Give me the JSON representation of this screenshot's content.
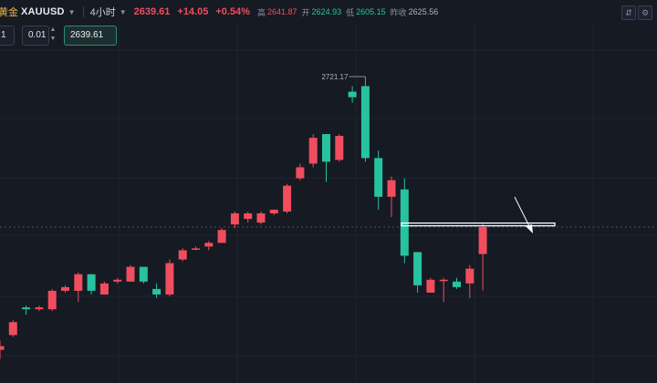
{
  "header": {
    "gold_label": "黄金",
    "symbol": "XAUUSD",
    "interval": "4小时",
    "price": "2639.61",
    "change": "+14.05",
    "change_pct": "+0.54%",
    "high_label": "高",
    "high_value": "2641.87",
    "open_label": "开",
    "open_value": "2624.93",
    "low_label": "低",
    "low_value": "2605.15",
    "prev_close_label": "昨收",
    "prev_close_value": "2625.56",
    "icons": [
      "caret-down-icon",
      "compare-icon",
      "settings-icon"
    ]
  },
  "order_bar": {
    "left_value": "1",
    "step_value": "0.01",
    "price_value": "2639.61"
  },
  "chart_data": {
    "type": "candlestick",
    "symbol": "XAUUSD",
    "interval": "4小时",
    "up_color": "#f04d5e",
    "down_color": "#27c3a0",
    "annotation": "2721.17",
    "ylim": [
      2555,
      2738
    ],
    "candles": [
      {
        "o": 2573,
        "h": 2578,
        "l": 2568,
        "c": 2575
      },
      {
        "o": 2581,
        "h": 2589,
        "l": 2580,
        "c": 2588
      },
      {
        "o": 2596,
        "h": 2597,
        "l": 2592,
        "c": 2595
      },
      {
        "o": 2595,
        "h": 2597,
        "l": 2594,
        "c": 2596
      },
      {
        "o": 2595,
        "h": 2606,
        "l": 2594,
        "c": 2605
      },
      {
        "o": 2605,
        "h": 2608,
        "l": 2604,
        "c": 2607
      },
      {
        "o": 2605,
        "h": 2615,
        "l": 2599,
        "c": 2614
      },
      {
        "o": 2614,
        "h": 2614,
        "l": 2603,
        "c": 2605
      },
      {
        "o": 2603,
        "h": 2610,
        "l": 2603,
        "c": 2609
      },
      {
        "o": 2610,
        "h": 2612,
        "l": 2609,
        "c": 2611
      },
      {
        "o": 2610,
        "h": 2619,
        "l": 2610,
        "c": 2618
      },
      {
        "o": 2618,
        "h": 2618,
        "l": 2609,
        "c": 2610
      },
      {
        "o": 2606,
        "h": 2609,
        "l": 2601,
        "c": 2603
      },
      {
        "o": 2603,
        "h": 2622,
        "l": 2602,
        "c": 2620
      },
      {
        "o": 2622,
        "h": 2628,
        "l": 2621,
        "c": 2627
      },
      {
        "o": 2628,
        "h": 2629,
        "l": 2627,
        "c": 2628
      },
      {
        "o": 2629,
        "h": 2632,
        "l": 2627,
        "c": 2631
      },
      {
        "o": 2631,
        "h": 2639,
        "l": 2631,
        "c": 2638
      },
      {
        "o": 2641,
        "h": 2648,
        "l": 2639,
        "c": 2647
      },
      {
        "o": 2644,
        "h": 2648,
        "l": 2642,
        "c": 2647
      },
      {
        "o": 2642,
        "h": 2648,
        "l": 2641,
        "c": 2647
      },
      {
        "o": 2647,
        "h": 2649,
        "l": 2646,
        "c": 2649
      },
      {
        "o": 2648,
        "h": 2663,
        "l": 2647,
        "c": 2662
      },
      {
        "o": 2666,
        "h": 2674,
        "l": 2665,
        "c": 2672
      },
      {
        "o": 2674,
        "h": 2690,
        "l": 2672,
        "c": 2688
      },
      {
        "o": 2690,
        "h": 2690,
        "l": 2664,
        "c": 2675
      },
      {
        "o": 2676,
        "h": 2690,
        "l": 2675,
        "c": 2689
      },
      {
        "o": 2713,
        "h": 2716,
        "l": 2707,
        "c": 2710
      },
      {
        "o": 2716,
        "h": 2721.17,
        "l": 2675,
        "c": 2677
      },
      {
        "o": 2677,
        "h": 2681,
        "l": 2649,
        "c": 2656
      },
      {
        "o": 2656,
        "h": 2667,
        "l": 2645,
        "c": 2665
      },
      {
        "o": 2660,
        "h": 2666,
        "l": 2620,
        "c": 2624
      },
      {
        "o": 2626,
        "h": 2626,
        "l": 2604,
        "c": 2608
      },
      {
        "o": 2604,
        "h": 2612,
        "l": 2604,
        "c": 2611
      },
      {
        "o": 2611,
        "h": 2612,
        "l": 2599,
        "c": 2611
      },
      {
        "o": 2610,
        "h": 2612,
        "l": 2606,
        "c": 2607
      },
      {
        "o": 2609,
        "h": 2619,
        "l": 2601,
        "c": 2617
      },
      {
        "o": 2624.93,
        "h": 2641.87,
        "l": 2605.15,
        "c": 2639.61
      }
    ],
    "horizontal_line_price": 2641,
    "dashed_price_line": 2639.61
  }
}
